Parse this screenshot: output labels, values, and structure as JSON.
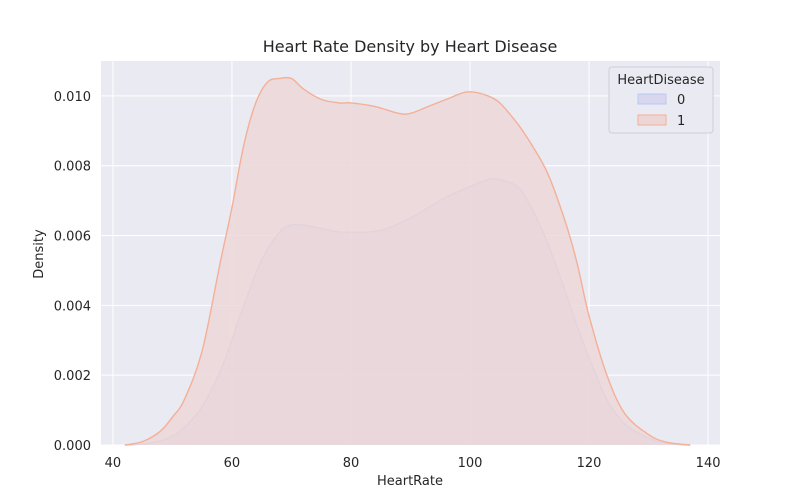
{
  "chart_data": {
    "type": "area",
    "title": "Heart Rate Density by Heart Disease",
    "xlabel": "HeartRate",
    "ylabel": "Density",
    "xlim": [
      38,
      142
    ],
    "ylim": [
      0,
      0.011
    ],
    "xticks": [
      40,
      60,
      80,
      100,
      120,
      140
    ],
    "yticks": [
      0.0,
      0.002,
      0.004,
      0.006,
      0.008,
      0.01
    ],
    "ytick_labels": [
      "0.000",
      "0.002",
      "0.004",
      "0.006",
      "0.008",
      "0.010"
    ],
    "grid": true,
    "legend": {
      "title": "HeartDisease",
      "placement": "top-right"
    },
    "series": [
      {
        "name": "0",
        "color": "#b7c9f6",
        "fill": "#d8d7ef",
        "x": [
          42,
          45,
          48,
          50,
          52,
          55,
          58,
          60,
          62,
          65,
          68,
          70,
          72,
          75,
          78,
          80,
          83,
          86,
          90,
          93,
          96,
          100,
          103,
          105,
          108,
          110,
          113,
          116,
          118,
          120,
          123,
          126,
          130,
          133,
          137
        ],
        "y": [
          0.0,
          3e-05,
          0.00012,
          0.00025,
          0.0005,
          0.0011,
          0.0021,
          0.003,
          0.004,
          0.0053,
          0.0061,
          0.0063,
          0.0063,
          0.0062,
          0.0061,
          0.0061,
          0.0061,
          0.0062,
          0.0065,
          0.0068,
          0.0071,
          0.0074,
          0.0076,
          0.0076,
          0.0074,
          0.0069,
          0.0058,
          0.0044,
          0.0034,
          0.0025,
          0.0013,
          0.0006,
          0.0002,
          5e-05,
          0.0
        ]
      },
      {
        "name": "1",
        "color": "#f4b096",
        "fill": "#ecd6d6",
        "x": [
          42,
          45,
          48,
          50,
          52,
          55,
          58,
          60,
          62,
          64,
          66,
          68,
          70,
          72,
          75,
          78,
          80,
          84,
          88,
          90,
          93,
          96,
          99,
          101,
          103,
          105,
          108,
          110,
          113,
          116,
          118,
          120,
          123,
          126,
          130,
          133,
          137
        ],
        "y": [
          0.0,
          0.0001,
          0.0004,
          0.0008,
          0.0013,
          0.0027,
          0.0052,
          0.0068,
          0.0086,
          0.0098,
          0.0104,
          0.0105,
          0.0105,
          0.0102,
          0.0099,
          0.0098,
          0.0098,
          0.0097,
          0.0095,
          0.0095,
          0.0097,
          0.0099,
          0.0101,
          0.0101,
          0.01,
          0.0098,
          0.0092,
          0.0087,
          0.0078,
          0.0064,
          0.0052,
          0.0037,
          0.002,
          0.0009,
          0.0003,
          8e-05,
          0.0
        ]
      }
    ]
  }
}
